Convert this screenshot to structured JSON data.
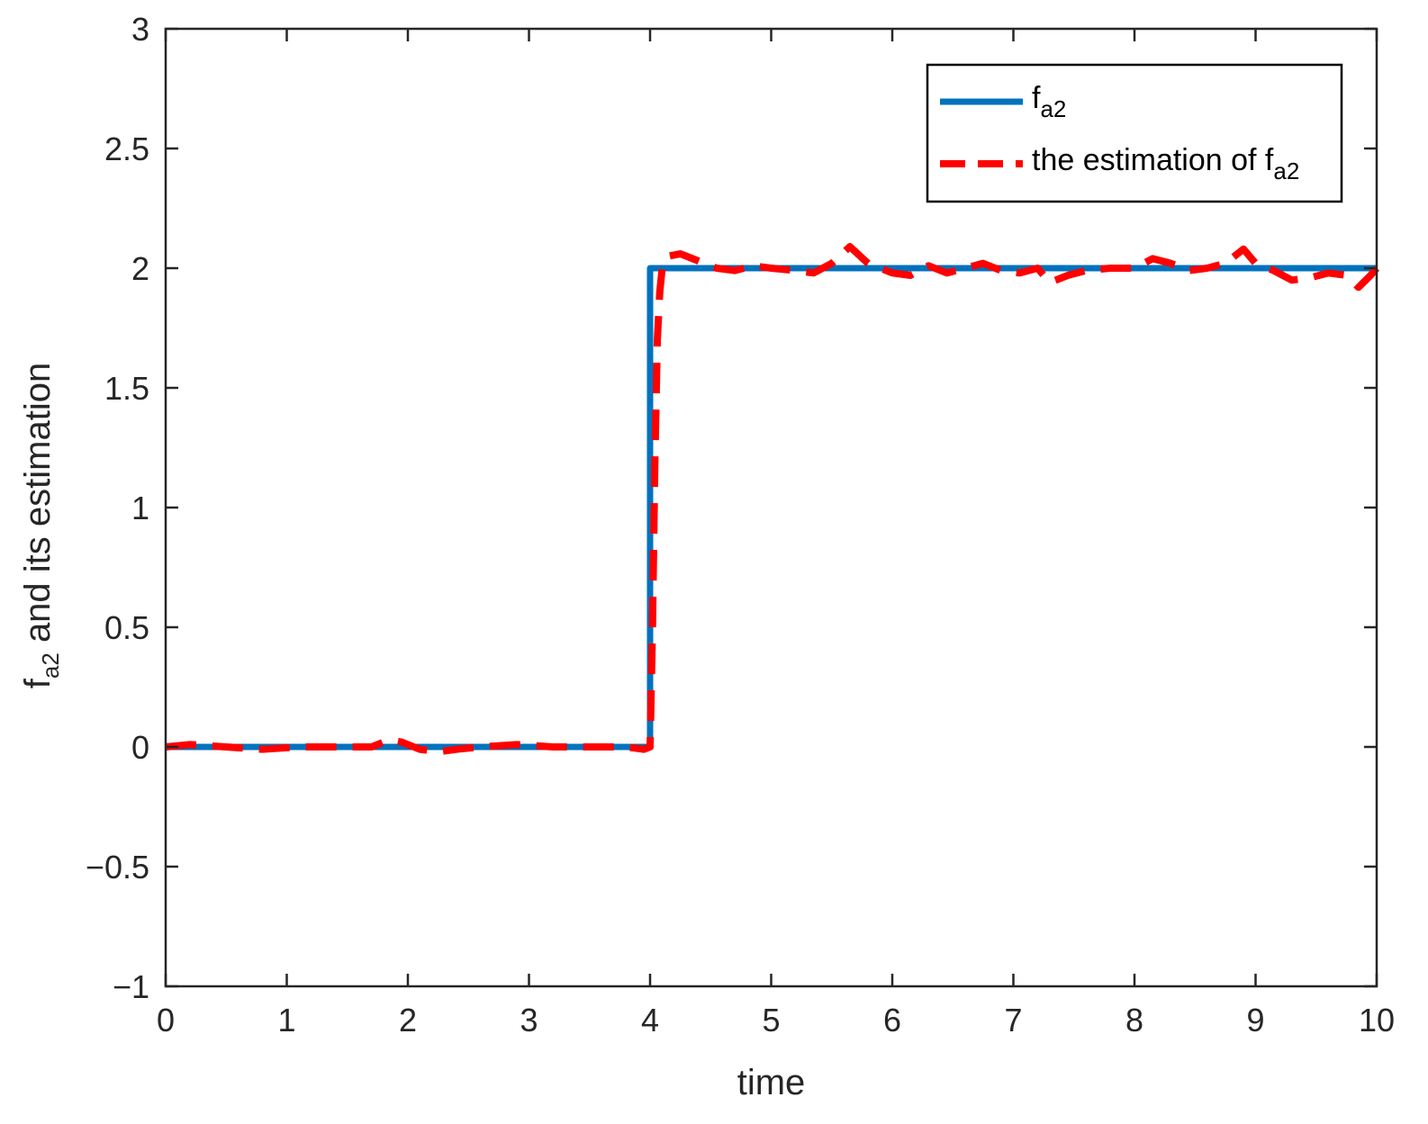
{
  "chart_data": {
    "type": "line",
    "xlabel": "time",
    "ylabel": {
      "main": "f",
      "sub": "a2",
      "rest": " and its estimation"
    },
    "xlim": [
      0,
      10
    ],
    "ylim": [
      -1,
      3
    ],
    "xticks": [
      0,
      1,
      2,
      3,
      4,
      5,
      6,
      7,
      8,
      9,
      10
    ],
    "yticks": [
      -1,
      -0.5,
      0,
      0.5,
      1,
      1.5,
      2,
      2.5,
      3
    ],
    "xtick_labels": [
      "0",
      "1",
      "2",
      "3",
      "4",
      "5",
      "6",
      "7",
      "8",
      "9",
      "10"
    ],
    "ytick_labels": [
      "−1",
      "−0.5",
      "0",
      "0.5",
      "1",
      "1.5",
      "2",
      "2.5",
      "3"
    ],
    "grid": false,
    "legend_position": "top-right",
    "series": [
      {
        "name": {
          "main": "f",
          "sub": "a2",
          "prefix": ""
        },
        "style": "solid",
        "color": "#0072BD",
        "x": [
          0,
          4,
          4,
          10
        ],
        "y": [
          0,
          0,
          2,
          2
        ]
      },
      {
        "name": {
          "main": "f",
          "sub": "a2",
          "prefix": "the estimation of "
        },
        "style": "dashed",
        "color": "#FF0000",
        "x": [
          0,
          0.2,
          0.5,
          0.8,
          1.1,
          1.4,
          1.7,
          1.85,
          1.95,
          2.1,
          2.25,
          2.4,
          2.6,
          2.9,
          3.2,
          3.5,
          3.8,
          3.95,
          4.0,
          4.02,
          4.04,
          4.06,
          4.08,
          4.1,
          4.15,
          4.25,
          4.4,
          4.55,
          4.7,
          4.85,
          5.0,
          5.2,
          5.35,
          5.5,
          5.65,
          5.8,
          6.0,
          6.15,
          6.3,
          6.45,
          6.6,
          6.75,
          6.9,
          7.05,
          7.2,
          7.3,
          7.45,
          7.6,
          7.8,
          8.0,
          8.15,
          8.3,
          8.45,
          8.6,
          8.75,
          8.9,
          9.0,
          9.15,
          9.3,
          9.45,
          9.6,
          9.75,
          9.85,
          9.95,
          10.0
        ],
        "y": [
          0,
          0.01,
          0.0,
          -0.01,
          0.0,
          0.0,
          0.0,
          0.03,
          0.02,
          -0.01,
          -0.02,
          -0.01,
          0.0,
          0.01,
          0.0,
          0.0,
          0.0,
          -0.01,
          0.0,
          0.5,
          1.2,
          1.7,
          1.9,
          2.0,
          2.05,
          2.06,
          2.03,
          2.0,
          1.99,
          2.01,
          2.0,
          1.99,
          1.98,
          2.02,
          2.09,
          2.02,
          1.98,
          1.97,
          2.01,
          1.98,
          2.0,
          2.02,
          1.99,
          1.98,
          2.0,
          1.94,
          1.97,
          1.99,
          2.0,
          2.0,
          2.04,
          2.02,
          1.99,
          2.0,
          2.02,
          2.08,
          2.02,
          1.99,
          1.95,
          1.96,
          1.98,
          1.97,
          1.92,
          1.97,
          2.0
        ]
      }
    ]
  }
}
